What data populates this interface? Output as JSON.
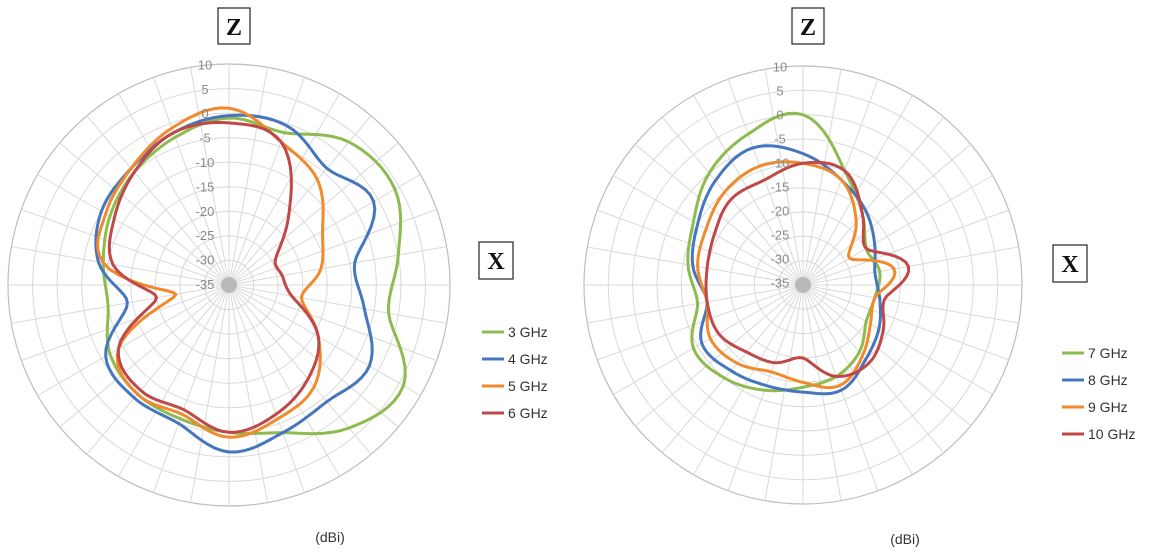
{
  "chart_data": [
    {
      "type": "polar-line",
      "unit_label": "(dBi)",
      "axis_labels": {
        "top": "Z",
        "right": "X"
      },
      "r_ticks": [
        "10",
        "5",
        "0",
        "-5",
        "-10",
        "-15",
        "-20",
        "-25",
        "-30",
        "-35"
      ],
      "rlim": [
        -35,
        10
      ],
      "theta_step_deg": 10,
      "grid": true,
      "legend_position": "right",
      "series": [
        {
          "name": "3 GHz",
          "color": "#8dbb4f",
          "theta": [
            0,
            20,
            40,
            60,
            80,
            100,
            120,
            140,
            160,
            180,
            200,
            220,
            240,
            260,
            280,
            300,
            320,
            340
          ],
          "values": [
            -1,
            -2,
            3,
            4,
            0,
            -2,
            6,
            3,
            -3,
            -5,
            -6,
            -6,
            -7,
            -10,
            -9,
            -7,
            -5,
            -3
          ]
        },
        {
          "name": "4 GHz",
          "color": "#4677be",
          "theta": [
            0,
            20,
            40,
            60,
            80,
            100,
            120,
            140,
            160,
            180,
            200,
            220,
            240,
            260,
            280,
            300,
            320,
            340
          ],
          "values": [
            -0.5,
            -0.5,
            -4,
            -1,
            -9,
            -7,
            -2,
            -4,
            -3,
            -1,
            -5,
            -5,
            -6,
            -14,
            -8,
            -5,
            -4,
            -2
          ]
        },
        {
          "name": "5 GHz",
          "color": "#f08a2d",
          "theta": [
            0,
            20,
            40,
            60,
            80,
            100,
            120,
            140,
            160,
            180,
            200,
            220,
            240,
            260,
            280,
            300,
            320,
            340
          ],
          "values": [
            1,
            -4,
            -7,
            -13,
            -16,
            -20,
            -14,
            -8,
            -6,
            -4,
            -7,
            -6,
            -9,
            -24,
            -9,
            -6,
            -4,
            -1
          ]
        },
        {
          "name": "6 GHz",
          "color": "#c04848",
          "theta": [
            0,
            20,
            40,
            60,
            80,
            100,
            120,
            140,
            160,
            180,
            200,
            220,
            240,
            260,
            280,
            300,
            320,
            340
          ],
          "values": [
            -2,
            -4,
            -16,
            -24,
            -24,
            -22,
            -14,
            -10,
            -7,
            -5,
            -8,
            -7,
            -9,
            -20,
            -11,
            -8,
            -5,
            -2
          ]
        }
      ]
    },
    {
      "type": "polar-line",
      "unit_label": "(dBi)",
      "axis_labels": {
        "top": "Z",
        "right": "X"
      },
      "r_ticks": [
        "10",
        "5",
        "0",
        "-5",
        "-10",
        "-15",
        "-20",
        "-25",
        "-30",
        "-35"
      ],
      "rlim": [
        -35,
        10
      ],
      "theta_step_deg": 10,
      "grid": true,
      "legend_position": "right",
      "series": [
        {
          "name": "7 GHz",
          "color": "#8dbb4f",
          "theta": [
            0,
            20,
            40,
            60,
            80,
            100,
            120,
            140,
            160,
            180,
            200,
            220,
            240,
            260,
            280,
            300,
            320,
            340
          ],
          "values": [
            0,
            -10,
            -16,
            -20,
            -19,
            -20,
            -20,
            -17,
            -15,
            -14,
            -12,
            -10,
            -9,
            -13,
            -11,
            -9,
            -5,
            -2
          ]
        },
        {
          "name": "8 GHz",
          "color": "#4677be",
          "theta": [
            0,
            20,
            40,
            60,
            80,
            100,
            120,
            140,
            160,
            180,
            200,
            220,
            240,
            260,
            280,
            300,
            320,
            340
          ],
          "values": [
            -8,
            -12,
            -15,
            -18,
            -20,
            -19,
            -17,
            -15,
            -12,
            -13,
            -13,
            -12,
            -11,
            -15,
            -12,
            -10,
            -7,
            -5
          ]
        },
        {
          "name": "9 GHz",
          "color": "#f08a2d",
          "theta": [
            0,
            20,
            40,
            60,
            80,
            100,
            120,
            140,
            160,
            180,
            200,
            220,
            240,
            260,
            280,
            300,
            320,
            340
          ],
          "values": [
            -10,
            -12,
            -18,
            -24,
            -16,
            -20,
            -19,
            -16,
            -13,
            -15,
            -16,
            -14,
            -13,
            -15,
            -13,
            -12,
            -10,
            -9
          ]
        },
        {
          "name": "10 GHz",
          "color": "#c04848",
          "theta": [
            0,
            20,
            40,
            60,
            80,
            100,
            120,
            140,
            160,
            180,
            200,
            220,
            240,
            260,
            280,
            300,
            320,
            340
          ],
          "values": [
            -10,
            -10,
            -16,
            -20,
            -13,
            -18,
            -16,
            -14,
            -15,
            -20,
            -18,
            -17,
            -15,
            -15,
            -15,
            -14,
            -12,
            -12
          ]
        }
      ]
    }
  ]
}
